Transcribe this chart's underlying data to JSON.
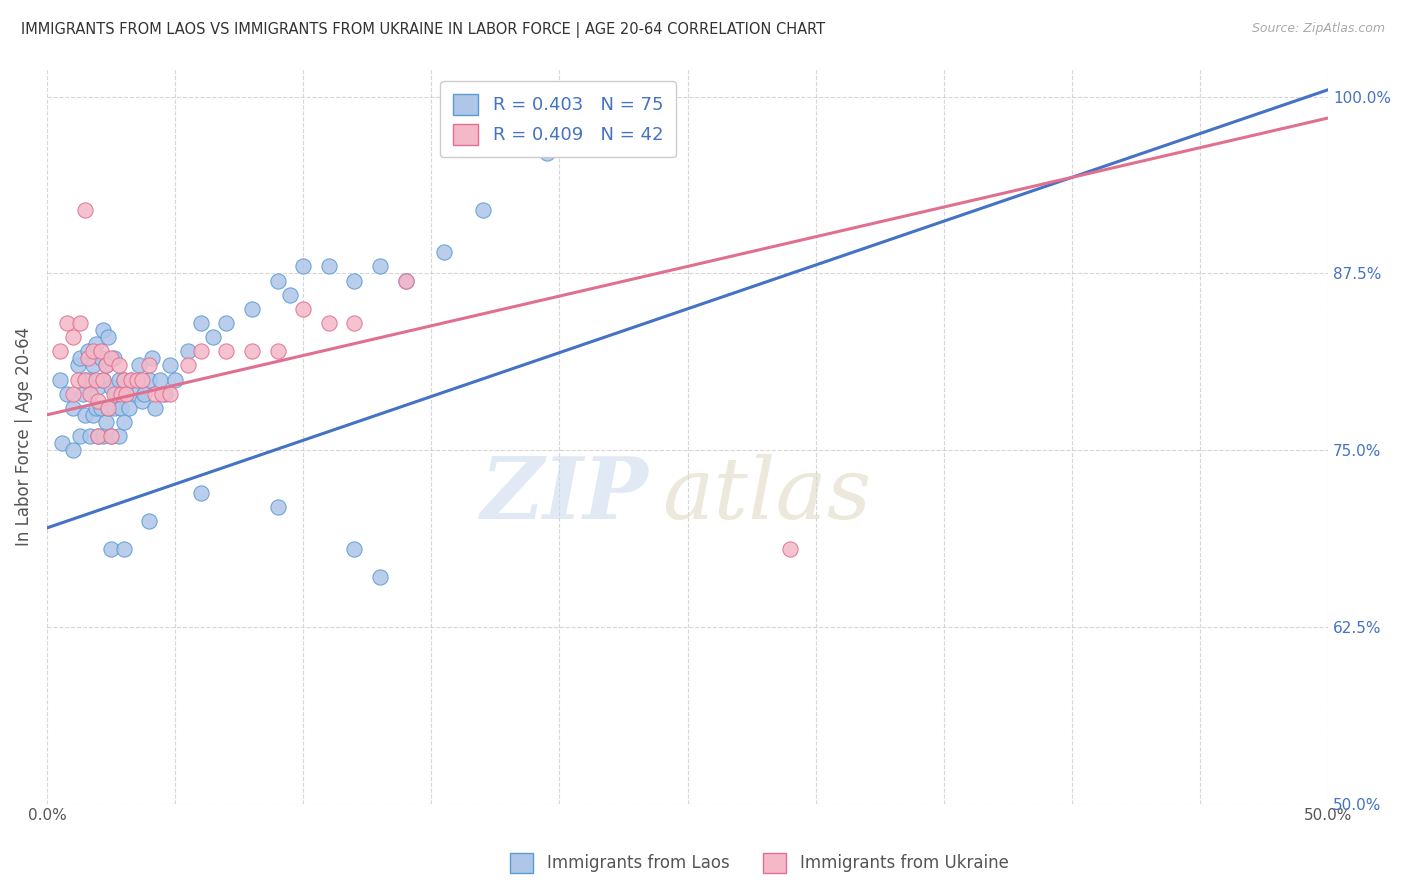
{
  "title": "IMMIGRANTS FROM LAOS VS IMMIGRANTS FROM UKRAINE IN LABOR FORCE | AGE 20-64 CORRELATION CHART",
  "source": "Source: ZipAtlas.com",
  "ylabel": "In Labor Force | Age 20-64",
  "blue_label": "Immigrants from Laos",
  "pink_label": "Immigrants from Ukraine",
  "R_blue": 0.403,
  "N_blue": 75,
  "R_pink": 0.409,
  "N_pink": 42,
  "xlim": [
    0.0,
    0.5
  ],
  "ylim": [
    0.5,
    1.02
  ],
  "ytick_values": [
    0.5,
    0.625,
    0.75,
    0.875,
    1.0
  ],
  "ytick_labels": [
    "50.0%",
    "62.5%",
    "75.0%",
    "87.5%",
    "100.0%"
  ],
  "blue_scatter_color": "#aec6e8",
  "blue_edge_color": "#5b9bd5",
  "pink_scatter_color": "#f4b8c8",
  "pink_edge_color": "#e07090",
  "blue_line_color": "#4472c4",
  "pink_line_color": "#e07090",
  "blue_line_intercept": 0.695,
  "blue_line_slope": 0.62,
  "pink_line_intercept": 0.775,
  "pink_line_slope": 0.42,
  "blue_x": [
    0.005,
    0.006,
    0.008,
    0.01,
    0.01,
    0.012,
    0.013,
    0.013,
    0.014,
    0.015,
    0.015,
    0.016,
    0.017,
    0.017,
    0.018,
    0.018,
    0.019,
    0.019,
    0.02,
    0.02,
    0.021,
    0.021,
    0.022,
    0.022,
    0.022,
    0.023,
    0.023,
    0.024,
    0.024,
    0.025,
    0.025,
    0.026,
    0.026,
    0.027,
    0.028,
    0.028,
    0.029,
    0.03,
    0.03,
    0.031,
    0.032,
    0.033,
    0.035,
    0.036,
    0.037,
    0.038,
    0.04,
    0.041,
    0.042,
    0.044,
    0.046,
    0.048,
    0.05,
    0.055,
    0.06,
    0.065,
    0.07,
    0.08,
    0.09,
    0.095,
    0.1,
    0.11,
    0.12,
    0.13,
    0.14,
    0.155,
    0.17,
    0.195,
    0.025,
    0.03,
    0.04,
    0.06,
    0.09,
    0.12,
    0.13
  ],
  "blue_y": [
    0.8,
    0.755,
    0.79,
    0.75,
    0.78,
    0.81,
    0.76,
    0.815,
    0.79,
    0.8,
    0.775,
    0.82,
    0.76,
    0.8,
    0.775,
    0.81,
    0.78,
    0.825,
    0.76,
    0.795,
    0.78,
    0.815,
    0.76,
    0.8,
    0.835,
    0.77,
    0.81,
    0.78,
    0.83,
    0.76,
    0.795,
    0.78,
    0.815,
    0.79,
    0.76,
    0.8,
    0.78,
    0.77,
    0.8,
    0.79,
    0.78,
    0.8,
    0.79,
    0.81,
    0.785,
    0.79,
    0.8,
    0.815,
    0.78,
    0.8,
    0.79,
    0.81,
    0.8,
    0.82,
    0.84,
    0.83,
    0.84,
    0.85,
    0.87,
    0.86,
    0.88,
    0.88,
    0.87,
    0.88,
    0.87,
    0.89,
    0.92,
    0.96,
    0.68,
    0.68,
    0.7,
    0.72,
    0.71,
    0.68,
    0.66
  ],
  "pink_x": [
    0.005,
    0.008,
    0.01,
    0.01,
    0.012,
    0.013,
    0.015,
    0.016,
    0.017,
    0.018,
    0.019,
    0.02,
    0.021,
    0.022,
    0.023,
    0.024,
    0.025,
    0.026,
    0.028,
    0.029,
    0.03,
    0.031,
    0.033,
    0.035,
    0.037,
    0.04,
    0.042,
    0.045,
    0.048,
    0.055,
    0.06,
    0.07,
    0.08,
    0.09,
    0.1,
    0.11,
    0.12,
    0.14,
    0.015,
    0.29,
    0.02,
    0.025
  ],
  "pink_y": [
    0.82,
    0.84,
    0.79,
    0.83,
    0.8,
    0.84,
    0.8,
    0.815,
    0.79,
    0.82,
    0.8,
    0.785,
    0.82,
    0.8,
    0.81,
    0.78,
    0.815,
    0.79,
    0.81,
    0.79,
    0.8,
    0.79,
    0.8,
    0.8,
    0.8,
    0.81,
    0.79,
    0.79,
    0.79,
    0.81,
    0.82,
    0.82,
    0.82,
    0.82,
    0.85,
    0.84,
    0.84,
    0.87,
    0.92,
    0.68,
    0.76,
    0.76
  ]
}
